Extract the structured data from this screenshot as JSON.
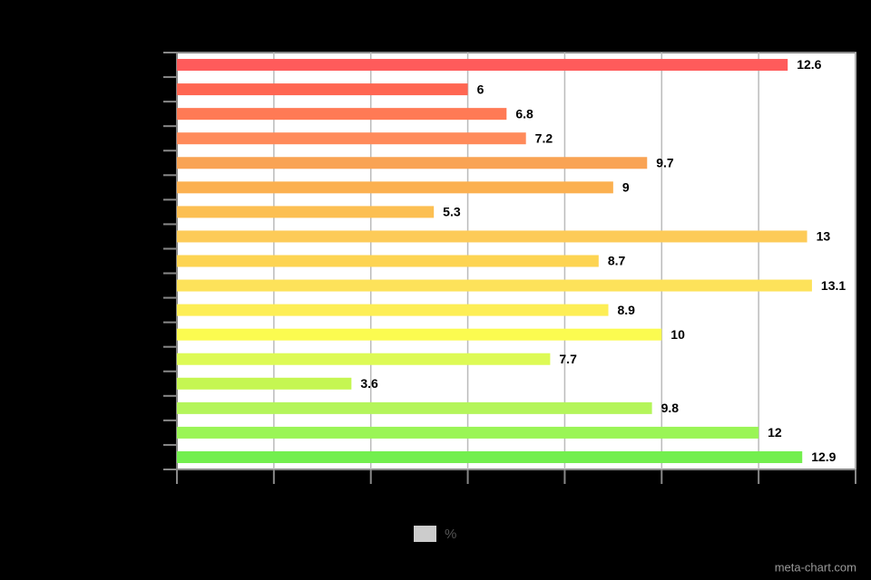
{
  "chart_data": {
    "type": "hbar",
    "categories": [
      null,
      null,
      null,
      null,
      null,
      null,
      null,
      null,
      null,
      null,
      null,
      null,
      null,
      null,
      null,
      null,
      null
    ],
    "series": [
      {
        "name": "%",
        "color": "#cccccc",
        "values": [
          12.6,
          6,
          6.8,
          7.2,
          9.7,
          9,
          5.3,
          13,
          8.7,
          13.1,
          8.9,
          10,
          7.7,
          3.6,
          9.8,
          12,
          12.9
        ],
        "colors": [
          "#ff5b5b",
          "#ff6652",
          "#ff7a55",
          "#ff8a5a",
          "#f9a354",
          "#fbb050",
          "#fcbf52",
          "#fdcb58",
          "#fdd452",
          "#fde25a",
          "#fdee55",
          "#fbfb50",
          "#ddfa55",
          "#c5f652",
          "#b4f55a",
          "#9af556",
          "#73ef4e"
        ]
      }
    ],
    "xlim": [
      0,
      14
    ],
    "xticks": [
      0,
      2,
      4,
      6,
      8,
      10,
      12,
      14
    ],
    "grid": true,
    "legend": "bottom",
    "credit": "meta-chart.com"
  }
}
